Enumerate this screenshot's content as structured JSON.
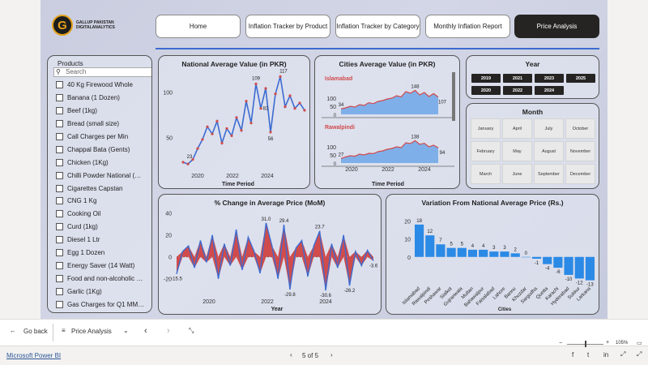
{
  "logo": {
    "glyph": "G",
    "line1": "GALLUP PAKISTAN",
    "line2": "DIGITALANALYTICS"
  },
  "nav": {
    "home": "Home",
    "tracker_product": "Inflation Tracker by Product",
    "tracker_category": "Inflation Tracker by Category",
    "monthly": "Monthly Inflation Report",
    "price_analysis": "Price Analysis"
  },
  "products": {
    "title": "Products",
    "search_placeholder": "Search",
    "items": [
      "40 Kg Firewood Whole",
      "Banana (1 Dozen)",
      "Beef (1kg)",
      "Bread (small size)",
      "Call Charges per Min",
      "Chappal Bata (Gents)",
      "Chicken (1Kg)",
      "Chilli Powder National (…",
      "Cigarettes Capstan",
      "CNG 1 Kg",
      "Cooking Oil",
      "Curd (1kg)",
      "Diesel 1 Ltr",
      "Egg 1 Dozen",
      "Energy Saver (14 Watt)",
      "Food and non-alcoholic …",
      "Garlic (1Kg)",
      "Gas Charges for Q1 MM…"
    ]
  },
  "year": {
    "title": "Year",
    "options": [
      "2019",
      "2021",
      "2023",
      "2025",
      "2020",
      "2022",
      "2024"
    ]
  },
  "month": {
    "title": "Month",
    "options": [
      "January",
      "April",
      "July",
      "October",
      "February",
      "May",
      "August",
      "November",
      "March",
      "June",
      "September",
      "December"
    ]
  },
  "accent": "#3c6bd1",
  "chart_data": [
    {
      "type": "line",
      "title": "National Average Value (in PKR)",
      "xlabel": "Time Period",
      "x_ticks": [
        "2020",
        "2022",
        "2024"
      ],
      "y_ticks": [
        50,
        100
      ],
      "ylim": [
        15,
        120
      ],
      "annotations": [
        {
          "label": "23",
          "value": 23
        },
        {
          "label": "109",
          "value": 109
        },
        {
          "label": "117",
          "value": 117
        },
        {
          "label": "56",
          "value": 56
        },
        {
          "label": "82",
          "value": 82
        }
      ],
      "series": [
        {
          "values": [
            23,
            21,
            26,
            38,
            48,
            62,
            54,
            68,
            44,
            60,
            52,
            72,
            58,
            90,
            66,
            109,
            82,
            104,
            56,
            98,
            117,
            84,
            96,
            82,
            88,
            80
          ]
        }
      ]
    },
    {
      "type": "area",
      "title": "Cities Average Value (in PKR)",
      "panels": [
        {
          "city": "Islamabad",
          "y_ticks": [
            50,
            100
          ],
          "labels": [
            "34",
            "0",
            "148",
            "107"
          ],
          "values": [
            34,
            40,
            50,
            45,
            60,
            55,
            72,
            66,
            80,
            85,
            95,
            100,
            115,
            108,
            140,
            130,
            148,
            120,
            135,
            110,
            128,
            107
          ]
        },
        {
          "city": "Rawalpindi",
          "y_ticks": [
            50,
            100
          ],
          "labels": [
            "27",
            "0",
            "138",
            "94"
          ],
          "values": [
            27,
            38,
            45,
            42,
            55,
            50,
            60,
            58,
            70,
            75,
            85,
            90,
            100,
            95,
            125,
            120,
            138,
            115,
            122,
            100,
            110,
            94
          ]
        }
      ],
      "xlabel": "Time Period",
      "x_ticks": [
        "2020",
        "2022",
        "2024"
      ]
    },
    {
      "type": "area",
      "title": "% Change in Average Price (MoM)",
      "xlabel": "Year",
      "x_ticks": [
        "2020",
        "2022",
        "2024"
      ],
      "y_ticks": [
        -20,
        0,
        20,
        40
      ],
      "ylim": [
        -35,
        42
      ],
      "annotations": [
        {
          "label": "-15.5",
          "value": -15.5
        },
        {
          "label": "31.0",
          "value": 31.0
        },
        {
          "label": "29.4",
          "value": 29.4
        },
        {
          "label": "-29.8",
          "value": -29.8
        },
        {
          "label": "23.7",
          "value": 23.7
        },
        {
          "label": "-30.6",
          "value": -30.6
        },
        {
          "label": "-26.2",
          "value": -26.2
        },
        {
          "label": "-3.6",
          "value": -3.6
        }
      ],
      "values": [
        -15.5,
        5,
        10,
        -10,
        15,
        -5,
        20,
        -20,
        12,
        -8,
        25,
        -12,
        18,
        5,
        -15,
        31,
        10,
        -20,
        29.4,
        -29.8,
        8,
        15,
        -18,
        10,
        23.7,
        -30.6,
        12,
        -10,
        20,
        -26.2,
        5,
        -8,
        6,
        -3.6
      ]
    },
    {
      "type": "bar",
      "title": "Variation From National Average Price (Rs.)",
      "xlabel": "Cities",
      "ylim": [
        -15,
        22
      ],
      "y_ticks": [
        0,
        10,
        20
      ],
      "categories": [
        "Islamabad",
        "Rawalpindi",
        "Peshawar",
        "Sialkot",
        "Gujranwala",
        "Multan",
        "Bahawalpur",
        "Faisalabad",
        "Lahore",
        "Bannu",
        "Khuzdar",
        "Sargodha",
        "Quetta",
        "Karachi",
        "Hyderabad",
        "Sukkur",
        "Larkana"
      ],
      "values": [
        18,
        12,
        7,
        5,
        5,
        4,
        4,
        3,
        3,
        2,
        0,
        -1,
        -4,
        -6,
        -10,
        -12,
        -13
      ]
    }
  ],
  "footer": {
    "go_back": "Go back",
    "page_select": "Price Analysis",
    "zoom": "105%",
    "app_link": "Microsoft Power BI",
    "page_indicator": "5 of 5"
  }
}
